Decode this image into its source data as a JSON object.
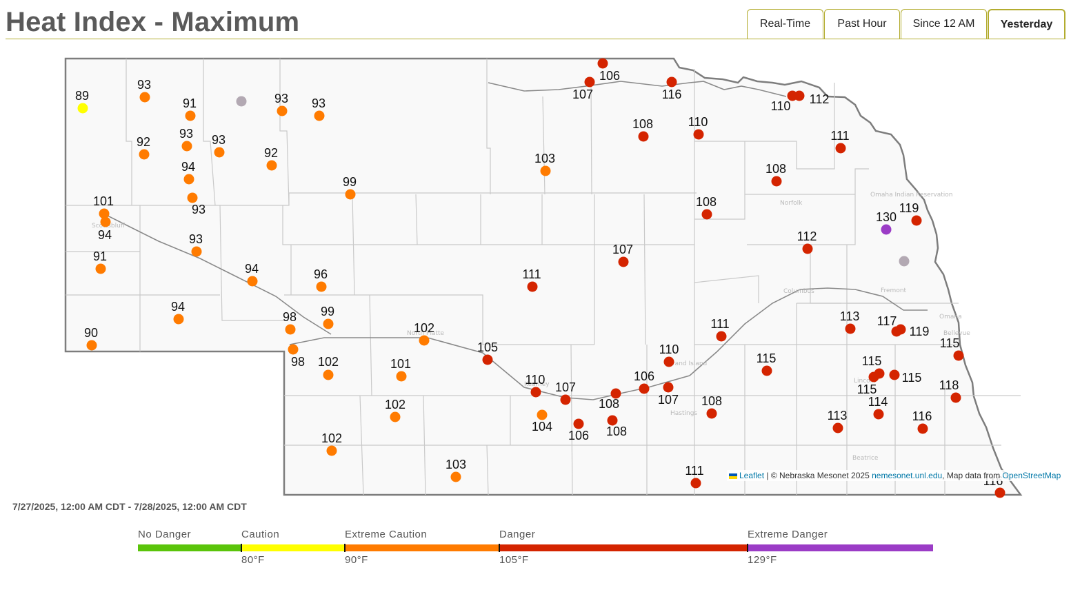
{
  "header": {
    "title": "Heat Index - Maximum"
  },
  "tabs": [
    {
      "label": "Real-Time",
      "active": false
    },
    {
      "label": "Past Hour",
      "active": false
    },
    {
      "label": "Since 12 AM",
      "active": false
    },
    {
      "label": "Yesterday",
      "active": true
    }
  ],
  "attribution": {
    "leaflet": "Leaflet",
    "separator": " | ",
    "mesonet": "© Nebraska Mesonet 2025 ",
    "site": "nemesonet.unl.edu",
    "mapdata": ", Map data from ",
    "osm": "OpenStreetMap"
  },
  "date_range": "7/27/2025, 12:00 AM CDT - 7/28/2025, 12:00 AM CDT",
  "legend": {
    "categories": [
      {
        "name": "No Danger",
        "color": "#5ac40a"
      },
      {
        "name": "Caution",
        "color": "#ffff00"
      },
      {
        "name": "Extreme Caution",
        "color": "#ff7b00"
      },
      {
        "name": "Danger",
        "color": "#d42400"
      },
      {
        "name": "Extreme Danger",
        "color": "#9b3cc6"
      }
    ],
    "thresholds": [
      "80°F",
      "90°F",
      "105°F",
      "129°F"
    ]
  },
  "map": {
    "missing_color": "#b3a9b3",
    "town_labels": [
      "Scottsbluff",
      "North Platte",
      "Kearney",
      "Grand Island",
      "Hastings",
      "Norfolk",
      "Columbus",
      "Fremont",
      "Lincoln",
      "Omaha",
      "Beatrice",
      "Omaha Indian Reservation",
      "Bellevue"
    ],
    "stations": [
      {
        "value": "89"
      },
      {
        "value": "93"
      },
      {
        "value": "91"
      },
      {
        "value": ""
      },
      {
        "value": "93"
      },
      {
        "value": "93"
      },
      {
        "value": "92"
      },
      {
        "value": "93"
      },
      {
        "value": "93"
      },
      {
        "value": "92"
      },
      {
        "value": "94"
      },
      {
        "value": "93"
      },
      {
        "value": "99"
      },
      {
        "value": "101"
      },
      {
        "value": "94"
      },
      {
        "value": "93"
      },
      {
        "value": "91"
      },
      {
        "value": "94"
      },
      {
        "value": "96"
      },
      {
        "value": "94"
      },
      {
        "value": "98"
      },
      {
        "value": "99"
      },
      {
        "value": "90"
      },
      {
        "value": "98"
      },
      {
        "value": "102"
      },
      {
        "value": "102"
      },
      {
        "value": "101"
      },
      {
        "value": "102"
      },
      {
        "value": "102"
      },
      {
        "value": "103"
      },
      {
        "value": "103"
      },
      {
        "value": "104"
      },
      {
        "value": "105"
      },
      {
        "value": "106"
      },
      {
        "value": "107"
      },
      {
        "value": "116"
      },
      {
        "value": "110"
      },
      {
        "value": "112"
      },
      {
        "value": "108"
      },
      {
        "value": "110"
      },
      {
        "value": "111"
      },
      {
        "value": "108"
      },
      {
        "value": "108"
      },
      {
        "value": "130"
      },
      {
        "value": "119"
      },
      {
        "value": "112"
      },
      {
        "value": ""
      },
      {
        "value": "107"
      },
      {
        "value": "111"
      },
      {
        "value": "111"
      },
      {
        "value": "113"
      },
      {
        "value": "117"
      },
      {
        "value": "119"
      },
      {
        "value": "110"
      },
      {
        "value": "115"
      },
      {
        "value": "115"
      },
      {
        "value": "115"
      },
      {
        "value": "115"
      },
      {
        "value": "115"
      },
      {
        "value": "110"
      },
      {
        "value": "107"
      },
      {
        "value": "106"
      },
      {
        "value": "106"
      },
      {
        "value": "107"
      },
      {
        "value": "108"
      },
      {
        "value": "108"
      },
      {
        "value": "108"
      },
      {
        "value": "118"
      },
      {
        "value": "114"
      },
      {
        "value": "113"
      },
      {
        "value": "116"
      },
      {
        "value": "111"
      },
      {
        "value": "116"
      }
    ]
  }
}
